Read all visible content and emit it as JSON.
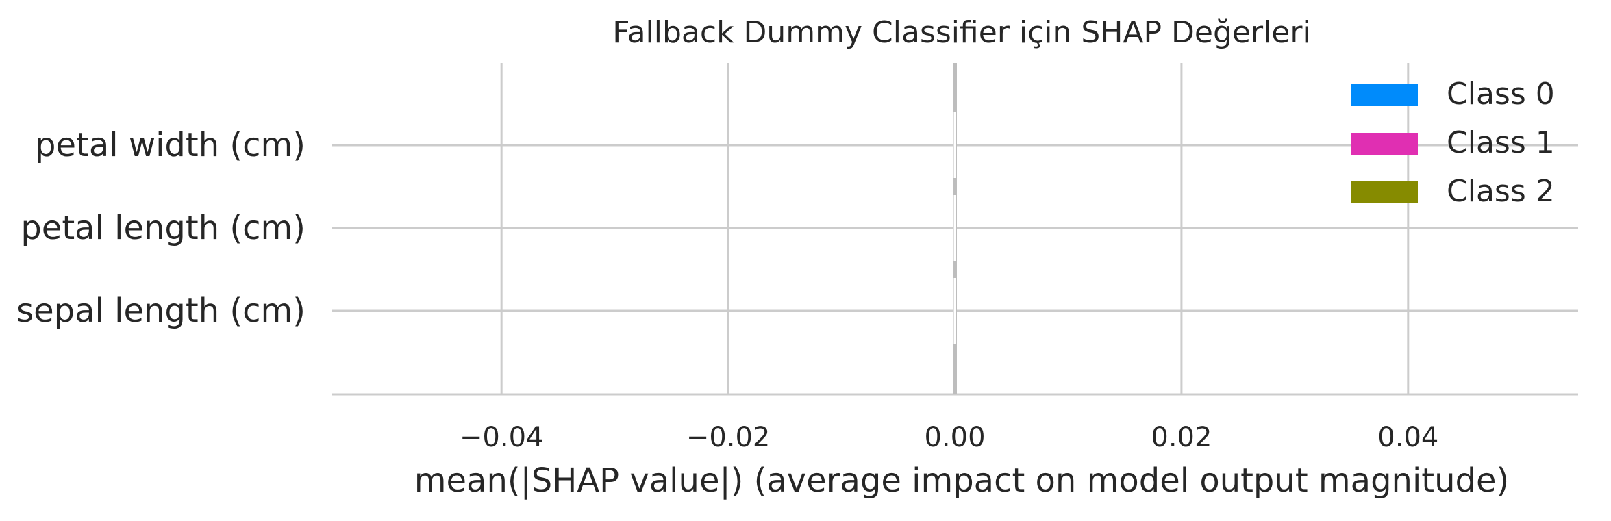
{
  "chart_data": {
    "type": "bar",
    "orientation": "horizontal",
    "stacked": true,
    "title": "Fallback Dummy Classifier için SHAP Değerleri",
    "xlabel": "mean(|SHAP value|) (average impact on model output magnitude)",
    "ylabel": "",
    "categories": [
      "petal width (cm)",
      "petal length (cm)",
      "sepal length (cm)"
    ],
    "series": [
      {
        "name": "Class 0",
        "color": "#008bfb",
        "values": [
          0,
          0,
          0
        ]
      },
      {
        "name": "Class 1",
        "color": "#e02fb2",
        "values": [
          0,
          0,
          0
        ]
      },
      {
        "name": "Class 2",
        "color": "#868b00",
        "values": [
          0,
          0,
          0
        ]
      }
    ],
    "xlim": [
      -0.055,
      0.055
    ],
    "xticks": [
      -0.04,
      -0.02,
      0.0,
      0.02,
      0.04
    ],
    "xtick_labels": [
      "−0.04",
      "−0.02",
      "0.00",
      "0.02",
      "0.04"
    ],
    "grid": true,
    "legend_position": "top-right"
  }
}
